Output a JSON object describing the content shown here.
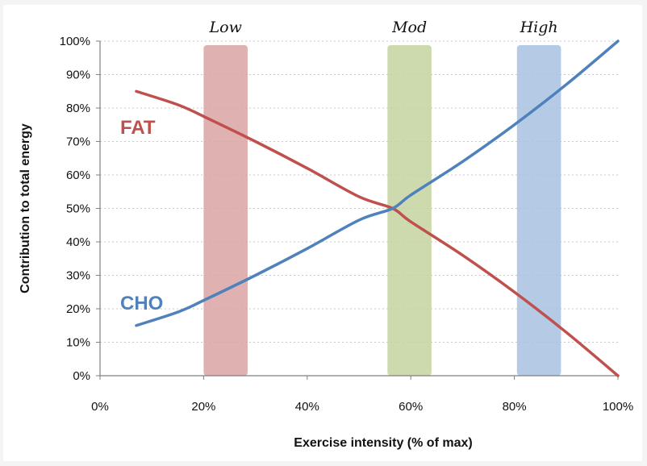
{
  "chart_data": {
    "type": "line",
    "title": "",
    "xlabel": "Exercise intensity (% of max)",
    "ylabel": "Contribution to total energy",
    "xlim": [
      0,
      100
    ],
    "ylim": [
      0,
      100
    ],
    "x_ticks": [
      0,
      20,
      40,
      60,
      80,
      100
    ],
    "y_ticks": [
      0,
      10,
      20,
      30,
      40,
      50,
      60,
      70,
      80,
      90,
      100
    ],
    "x_tick_labels": [
      "0%",
      "20%",
      "40%",
      "60%",
      "80%",
      "100%"
    ],
    "y_tick_labels": [
      "0%",
      "10%",
      "20%",
      "30%",
      "40%",
      "50%",
      "60%",
      "70%",
      "80%",
      "90%",
      "100%"
    ],
    "grid": "horizontal dotted",
    "series": [
      {
        "name": "FAT",
        "color": "#c0504d",
        "x": [
          7,
          15,
          20,
          30,
          40,
          50,
          56.5,
          60,
          70,
          80,
          90,
          100
        ],
        "y": [
          85,
          81,
          77.5,
          70,
          62,
          53.5,
          50,
          46,
          36,
          25,
          13,
          0
        ]
      },
      {
        "name": "CHO",
        "color": "#4f81bd",
        "x": [
          7,
          15,
          20,
          30,
          40,
          50,
          56.5,
          60,
          70,
          80,
          90,
          100
        ],
        "y": [
          15,
          19,
          22.5,
          30,
          38,
          46.5,
          50,
          54,
          64,
          75,
          87,
          100
        ]
      }
    ],
    "bands": [
      {
        "label": "Low",
        "x": [
          20,
          28.5
        ],
        "color": "#d9a3a3"
      },
      {
        "label": "Mod",
        "x": [
          55.5,
          64
        ],
        "color": "#c3d3a0"
      },
      {
        "label": "High",
        "x": [
          80.5,
          89
        ],
        "color": "#a7c1e0"
      }
    ]
  }
}
